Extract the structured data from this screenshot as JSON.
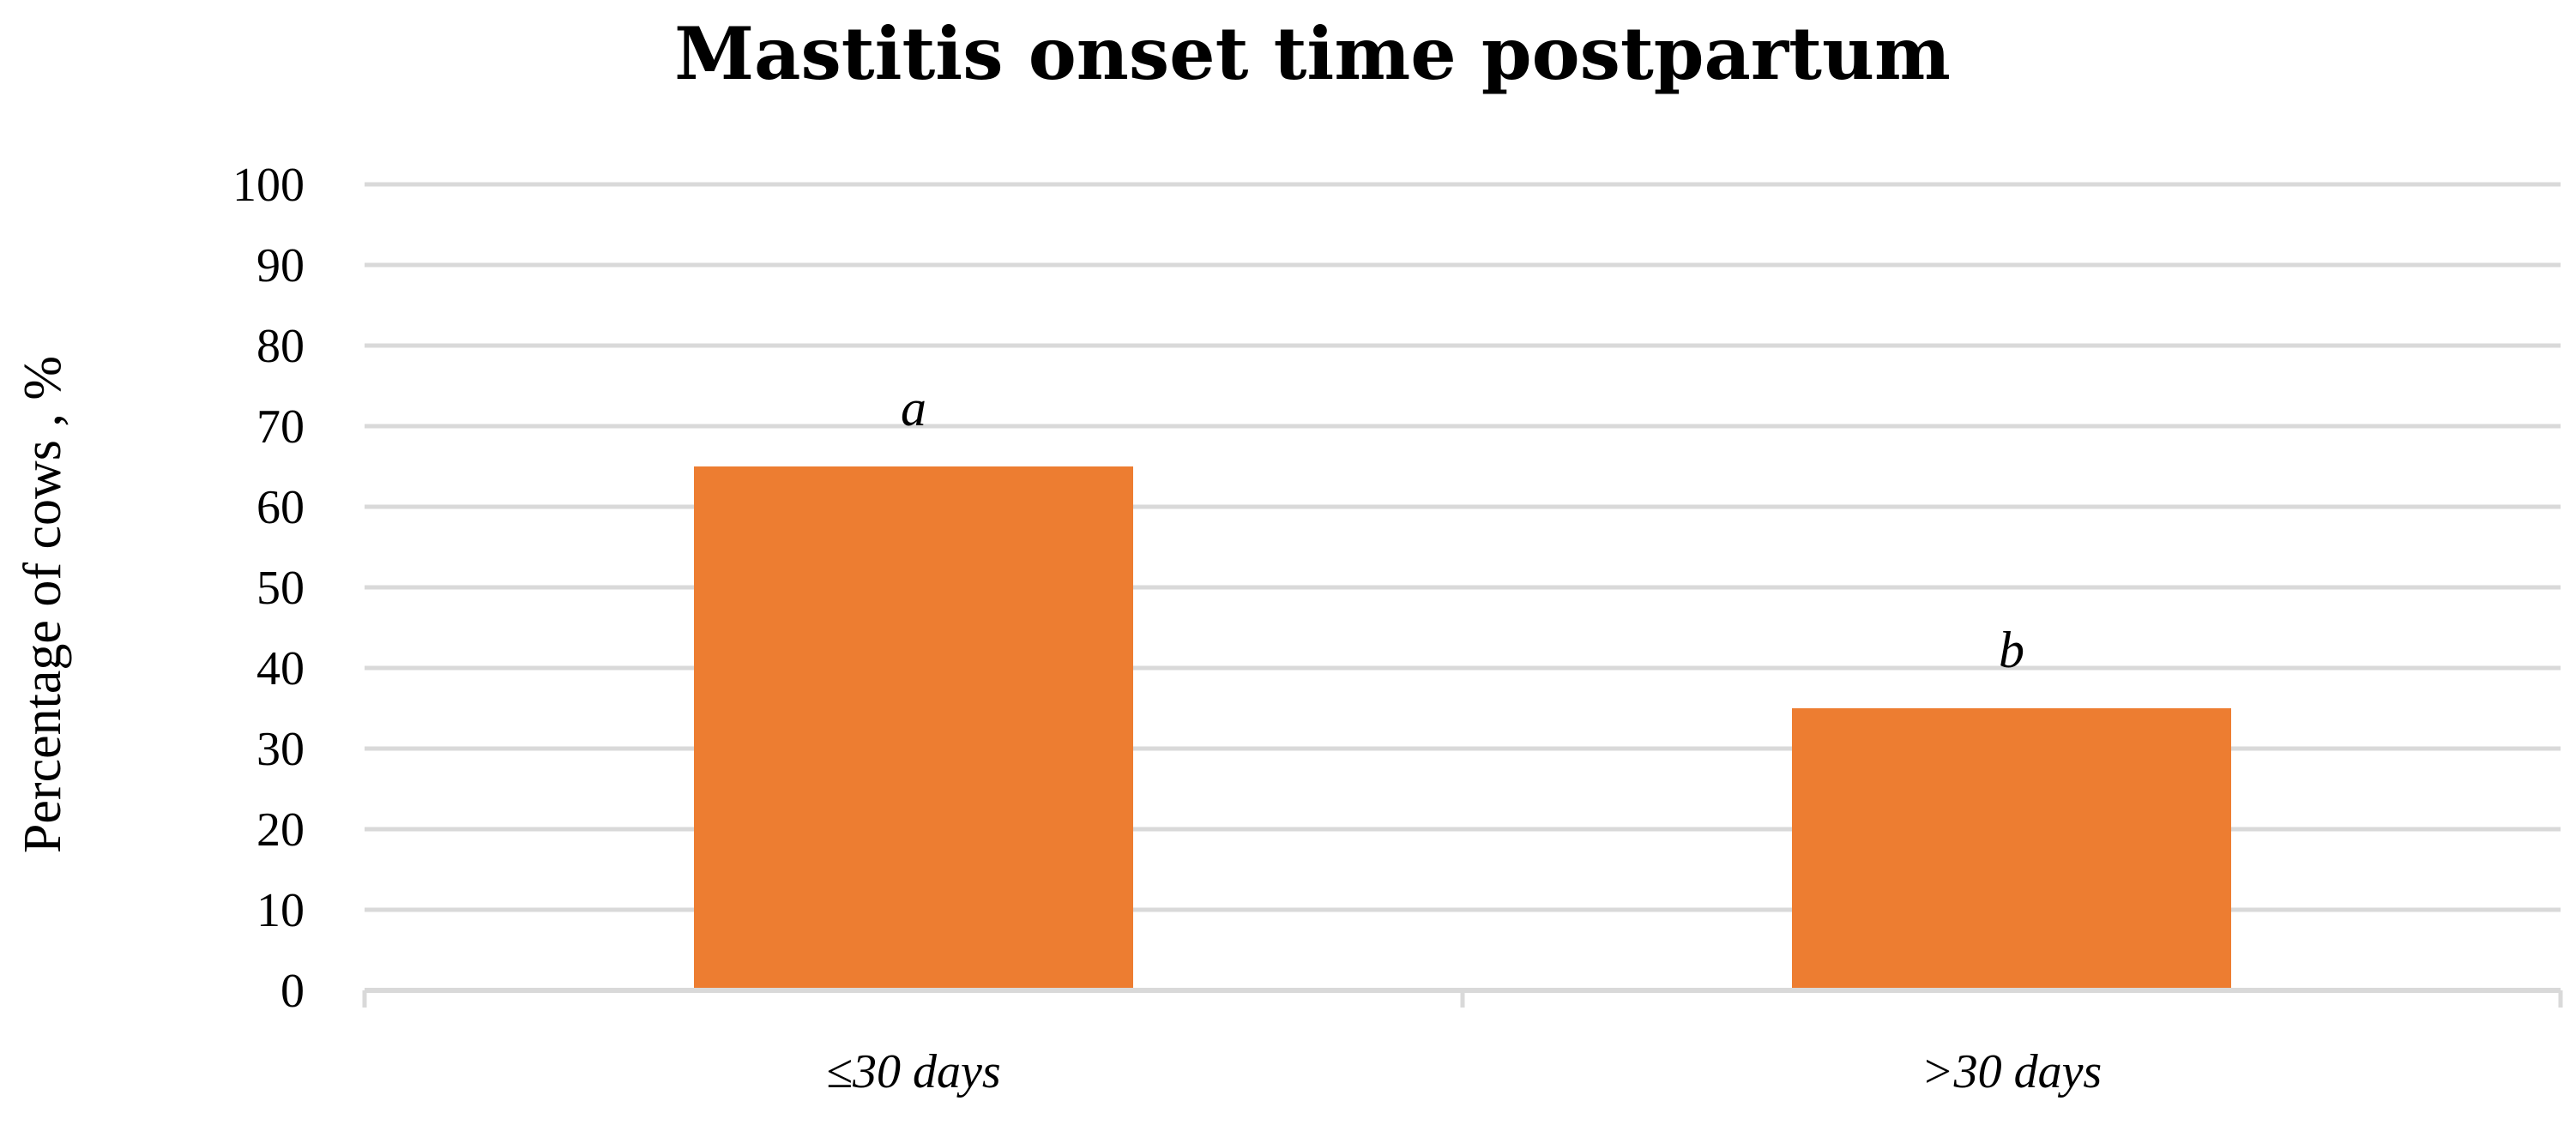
{
  "chart_data": {
    "type": "bar",
    "title": "Mastitis onset time postpartum",
    "ylabel": "Percentage of cows , %",
    "xlabel": "",
    "categories": [
      "≤30 days",
      ">30 days"
    ],
    "values": [
      65,
      35
    ],
    "data_labels": [
      "a",
      "b"
    ],
    "ylim": [
      0,
      100
    ],
    "yticks": [
      0,
      10,
      20,
      30,
      40,
      50,
      60,
      70,
      80,
      90,
      100
    ],
    "grid": true,
    "legend": "none",
    "bar_color": "#ED7D31",
    "grid_color": "#D9D9D9"
  }
}
